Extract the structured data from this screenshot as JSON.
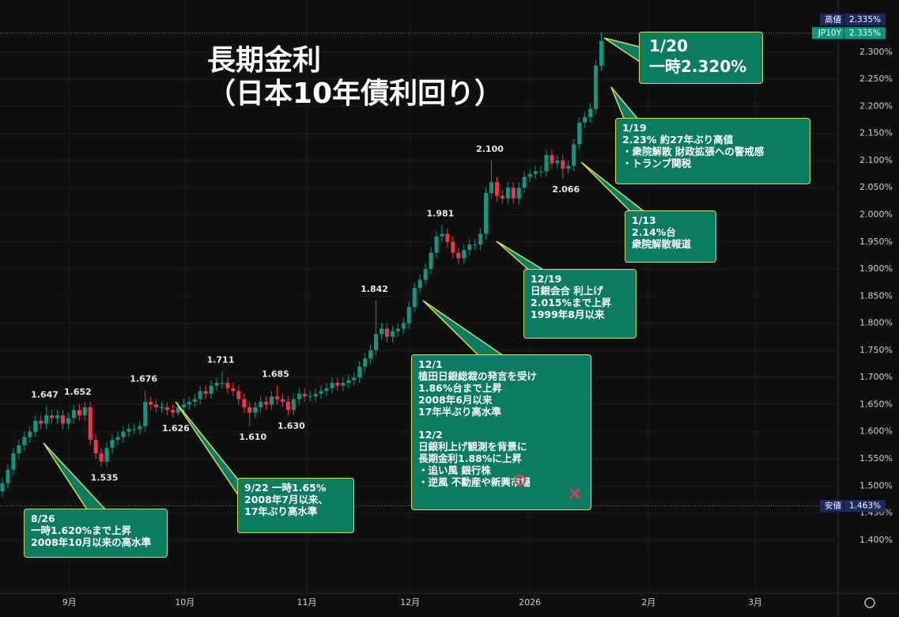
{
  "chart_data": {
    "type": "candlestick",
    "title": "長期金利",
    "subtitle": "（日本10年債利回り）",
    "open": [
      1.49,
      1.505,
      1.53,
      1.56,
      1.575,
      1.59,
      1.6,
      1.62,
      1.615,
      1.63,
      1.625,
      1.63,
      1.615,
      1.625,
      1.64,
      1.63,
      1.645,
      1.585,
      1.56,
      1.545,
      1.57,
      1.585,
      1.59,
      1.6,
      1.605,
      1.605,
      1.61,
      1.655,
      1.65,
      1.645,
      1.645,
      1.64,
      1.635,
      1.645,
      1.65,
      1.655,
      1.66,
      1.675,
      1.67,
      1.685,
      1.69,
      1.69,
      1.68,
      1.675,
      1.66,
      1.645,
      1.635,
      1.645,
      1.655,
      1.65,
      1.665,
      1.66,
      1.655,
      1.64,
      1.66,
      1.67,
      1.665,
      1.665,
      1.67,
      1.675,
      1.68,
      1.69,
      1.685,
      1.69,
      1.695,
      1.7,
      1.72,
      1.735,
      1.75,
      1.78,
      1.79,
      1.775,
      1.785,
      1.79,
      1.8,
      1.83,
      1.865,
      1.88,
      1.9,
      1.93,
      1.96,
      1.965,
      1.95,
      1.93,
      1.92,
      1.935,
      1.945,
      1.945,
      1.965,
      2.04,
      2.06,
      2.035,
      2.03,
      2.05,
      2.03,
      2.05,
      2.07,
      2.075,
      2.08,
      2.08,
      2.11,
      2.095,
      2.1,
      2.085,
      2.09,
      2.13,
      2.17,
      2.18,
      2.195,
      2.275
    ],
    "high": [
      1.515,
      1.54,
      1.57,
      1.585,
      1.6,
      1.61,
      1.63,
      1.63,
      1.647,
      1.64,
      1.64,
      1.64,
      1.635,
      1.65,
      1.652,
      1.655,
      1.655,
      1.595,
      1.57,
      1.58,
      1.595,
      1.6,
      1.61,
      1.615,
      1.615,
      1.62,
      1.676,
      1.665,
      1.66,
      1.655,
      1.655,
      1.65,
      1.655,
      1.66,
      1.665,
      1.67,
      1.685,
      1.685,
      1.695,
      1.7,
      1.711,
      1.7,
      1.69,
      1.685,
      1.67,
      1.655,
      1.655,
      1.665,
      1.665,
      1.675,
      1.685,
      1.67,
      1.665,
      1.67,
      1.68,
      1.68,
      1.675,
      1.68,
      1.685,
      1.69,
      1.7,
      1.7,
      1.7,
      1.705,
      1.71,
      1.73,
      1.745,
      1.76,
      1.842,
      1.8,
      1.8,
      1.795,
      1.8,
      1.81,
      1.84,
      1.875,
      1.89,
      1.91,
      1.94,
      1.97,
      1.981,
      1.975,
      1.96,
      1.94,
      1.945,
      1.955,
      1.955,
      1.975,
      2.05,
      2.1,
      2.07,
      2.045,
      2.06,
      2.06,
      2.06,
      2.08,
      2.085,
      2.09,
      2.09,
      2.12,
      2.12,
      2.11,
      2.11,
      2.1,
      2.14,
      2.18,
      2.19,
      2.205,
      2.285,
      2.335
    ],
    "low": [
      1.48,
      1.495,
      1.52,
      1.55,
      1.565,
      1.58,
      1.59,
      1.605,
      1.605,
      1.615,
      1.615,
      1.605,
      1.605,
      1.615,
      1.62,
      1.62,
      1.575,
      1.55,
      1.535,
      1.535,
      1.56,
      1.575,
      1.58,
      1.59,
      1.595,
      1.595,
      1.6,
      1.64,
      1.635,
      1.635,
      1.63,
      1.626,
      1.63,
      1.635,
      1.64,
      1.645,
      1.65,
      1.66,
      1.66,
      1.675,
      1.68,
      1.67,
      1.665,
      1.65,
      1.635,
      1.61,
      1.625,
      1.635,
      1.64,
      1.64,
      1.65,
      1.645,
      1.63,
      1.63,
      1.65,
      1.655,
      1.655,
      1.655,
      1.66,
      1.665,
      1.67,
      1.675,
      1.675,
      1.68,
      1.685,
      1.69,
      1.71,
      1.725,
      1.74,
      1.77,
      1.765,
      1.765,
      1.775,
      1.78,
      1.79,
      1.82,
      1.855,
      1.87,
      1.89,
      1.92,
      1.95,
      1.94,
      1.92,
      1.91,
      1.91,
      1.925,
      1.935,
      1.935,
      1.955,
      2.03,
      2.025,
      2.02,
      2.02,
      2.02,
      2.02,
      2.04,
      2.06,
      2.065,
      2.07,
      2.07,
      2.085,
      2.085,
      2.066,
      2.075,
      2.08,
      2.12,
      2.16,
      2.17,
      2.185,
      2.265
    ],
    "close": [
      1.505,
      1.53,
      1.56,
      1.575,
      1.59,
      1.6,
      1.62,
      1.615,
      1.63,
      1.625,
      1.63,
      1.615,
      1.625,
      1.64,
      1.63,
      1.645,
      1.585,
      1.56,
      1.545,
      1.57,
      1.585,
      1.59,
      1.6,
      1.605,
      1.605,
      1.61,
      1.655,
      1.65,
      1.645,
      1.645,
      1.64,
      1.635,
      1.645,
      1.65,
      1.655,
      1.66,
      1.675,
      1.67,
      1.685,
      1.69,
      1.69,
      1.68,
      1.675,
      1.66,
      1.645,
      1.635,
      1.645,
      1.655,
      1.65,
      1.665,
      1.66,
      1.655,
      1.64,
      1.66,
      1.67,
      1.665,
      1.665,
      1.67,
      1.675,
      1.68,
      1.69,
      1.685,
      1.69,
      1.695,
      1.7,
      1.72,
      1.735,
      1.75,
      1.78,
      1.79,
      1.775,
      1.785,
      1.79,
      1.8,
      1.83,
      1.865,
      1.88,
      1.9,
      1.93,
      1.96,
      1.965,
      1.95,
      1.93,
      1.92,
      1.935,
      1.945,
      1.945,
      1.965,
      2.04,
      2.06,
      2.035,
      2.03,
      2.05,
      2.03,
      2.05,
      2.07,
      2.075,
      2.08,
      2.08,
      2.11,
      2.095,
      2.1,
      2.085,
      2.09,
      2.13,
      2.17,
      2.18,
      2.195,
      2.275,
      2.32
    ],
    "high_labels": [
      null,
      null,
      null,
      null,
      null,
      null,
      null,
      null,
      "1.647",
      null,
      null,
      null,
      null,
      null,
      "1.652",
      null,
      null,
      null,
      null,
      null,
      null,
      null,
      null,
      null,
      null,
      null,
      "1.676",
      null,
      null,
      null,
      null,
      null,
      null,
      null,
      null,
      null,
      null,
      null,
      null,
      null,
      "1.711",
      null,
      null,
      null,
      null,
      null,
      null,
      null,
      null,
      null,
      "1.685",
      null,
      null,
      null,
      null,
      null,
      null,
      null,
      null,
      null,
      null,
      null,
      null,
      null,
      null,
      null,
      null,
      null,
      "1.842",
      null,
      null,
      null,
      null,
      null,
      null,
      null,
      null,
      null,
      null,
      null,
      "1.981",
      null,
      null,
      null,
      null,
      null,
      null,
      null,
      null,
      "2.100",
      null,
      null,
      null,
      null,
      null,
      null,
      null,
      null,
      null,
      null,
      null,
      null,
      null,
      null,
      null,
      null,
      null,
      null,
      null,
      null
    ],
    "low_labels": [
      null,
      null,
      null,
      null,
      null,
      null,
      null,
      null,
      null,
      null,
      null,
      null,
      null,
      null,
      null,
      null,
      null,
      null,
      "1.535",
      null,
      null,
      null,
      null,
      null,
      null,
      null,
      null,
      null,
      null,
      null,
      null,
      "1.626",
      null,
      null,
      null,
      null,
      null,
      null,
      null,
      null,
      null,
      null,
      null,
      null,
      null,
      "1.610",
      null,
      null,
      null,
      null,
      null,
      null,
      "1.630",
      null,
      null,
      null,
      null,
      null,
      null,
      null,
      null,
      null,
      null,
      null,
      null,
      null,
      null,
      null,
      null,
      null,
      null,
      null,
      null,
      null,
      null,
      null,
      null,
      null,
      null,
      null,
      null,
      null,
      null,
      null,
      null,
      null,
      null,
      null,
      null,
      null,
      null,
      null,
      null,
      null,
      null,
      null,
      null,
      null,
      null,
      null,
      null,
      null,
      "2.066",
      null,
      null,
      null,
      null,
      null,
      null,
      null
    ],
    "up_color": "#089981",
    "down_color": "#f23645",
    "xlim": [
      -0.43,
      152.1
    ],
    "ylim": [
      1.302,
      2.396
    ],
    "xticks": [
      {
        "value": 12.2,
        "label": "9月"
      },
      {
        "value": 33.2,
        "label": "10月"
      },
      {
        "value": 55.4,
        "label": "11月"
      },
      {
        "value": 74.2,
        "label": "12月"
      },
      {
        "value": 96,
        "label": "2026"
      },
      {
        "value": 117.6,
        "label": "2月"
      },
      {
        "value": 137,
        "label": "3月"
      }
    ],
    "yticks": [
      {
        "value": 1.4,
        "label": "1.400%"
      },
      {
        "value": 1.45,
        "label": "1.450%"
      },
      {
        "value": 1.5,
        "label": "1.500%"
      },
      {
        "value": 1.55,
        "label": "1.550%"
      },
      {
        "value": 1.6,
        "label": "1.600%"
      },
      {
        "value": 1.65,
        "label": "1.650%"
      },
      {
        "value": 1.7,
        "label": "1.700%"
      },
      {
        "value": 1.75,
        "label": "1.750%"
      },
      {
        "value": 1.8,
        "label": "1.800%"
      },
      {
        "value": 1.85,
        "label": "1.850%"
      },
      {
        "value": 1.9,
        "label": "1.900%"
      },
      {
        "value": 1.95,
        "label": "1.950%"
      },
      {
        "value": 2.0,
        "label": "2.000%"
      },
      {
        "value": 2.05,
        "label": "2.050%"
      },
      {
        "value": 2.1,
        "label": "2.100%"
      },
      {
        "value": 2.15,
        "label": "2.150%"
      },
      {
        "value": 2.2,
        "label": "2.200%"
      },
      {
        "value": 2.25,
        "label": "2.250%"
      },
      {
        "value": 2.3,
        "label": "2.300%"
      }
    ],
    "grid": true,
    "price_tags": [
      {
        "name": "高値",
        "value": 2.335,
        "label": "2.335%",
        "color": "#1c2a5e"
      },
      {
        "name": "JP10Y",
        "value": 2.335,
        "label": "2.335%",
        "color": "#089981"
      },
      {
        "name": "安値",
        "value": 1.463,
        "label": "1.463%",
        "color": "#1c2a5e"
      }
    ],
    "annotations": [
      {
        "sections": [
          [
            "1/20",
            "一時2.320%"
          ]
        ]
      },
      {
        "sections": [
          [
            "1/19",
            "2.23% 約27年ぶり高値",
            "・衆院解散 財政拡張への警戒感",
            "・トランプ関税"
          ]
        ]
      },
      {
        "sections": [
          [
            "1/13",
            "2.14%台",
            "衆院解散報道"
          ]
        ]
      },
      {
        "sections": [
          [
            "12/19",
            "日銀会合 利上げ",
            "2.015%まで上昇",
            "1999年8月以来"
          ]
        ]
      },
      {
        "sections": [
          [
            "12/1",
            "植田日銀総裁の発言を受け",
            "1.86%台まで上昇",
            "2008年6月以来",
            "17年半ぶり高水準"
          ],
          [
            "12/2",
            "日銀利上げ観測を背景に",
            "長期金利1.88%に上昇",
            "・追い風 銀行株",
            "・逆風 不動産や新興市場"
          ]
        ]
      },
      {
        "sections": [
          [
            "9/22 一時1.65%",
            "2008年7月以来、",
            "17年ぶり高水準"
          ]
        ]
      },
      {
        "sections": [
          [
            "8/26",
            "一時1.620%まで上昇",
            "2008年10月以来の高水準"
          ]
        ]
      }
    ]
  }
}
